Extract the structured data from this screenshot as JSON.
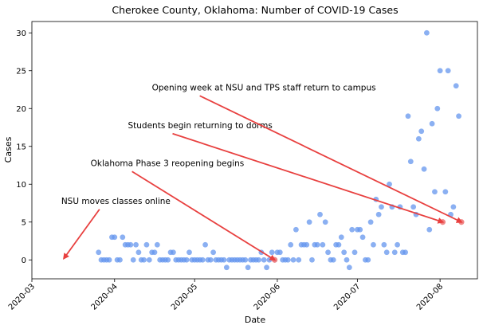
{
  "chart_data": {
    "type": "scatter",
    "title": "Cherokee County, Oklahoma: Number of COVID-19 Cases",
    "xlabel": "Date",
    "ylabel": "Cases",
    "xlim": [
      "2020-03-01",
      "2020-08-15"
    ],
    "ylim": [
      -2.5,
      31.5
    ],
    "x_ticks": [
      "2020-03",
      "2020-04",
      "2020-05",
      "2020-06",
      "2020-07",
      "2020-08"
    ],
    "y_ticks": [
      0,
      5,
      10,
      15,
      20,
      25,
      30
    ],
    "grid": false,
    "point_color": "#6495ED",
    "highlight_color": "#F08080",
    "arrow_color": "#E8403F",
    "series": [
      {
        "points": [
          [
            "2020-03-26",
            1
          ],
          [
            "2020-03-27",
            0
          ],
          [
            "2020-03-28",
            0
          ],
          [
            "2020-03-29",
            0
          ],
          [
            "2020-03-30",
            0
          ],
          [
            "2020-03-31",
            3
          ],
          [
            "2020-04-01",
            3
          ],
          [
            "2020-04-02",
            0
          ],
          [
            "2020-04-03",
            0
          ],
          [
            "2020-04-04",
            3
          ],
          [
            "2020-04-05",
            2
          ],
          [
            "2020-04-06",
            2
          ],
          [
            "2020-04-07",
            2
          ],
          [
            "2020-04-08",
            0
          ],
          [
            "2020-04-09",
            2
          ],
          [
            "2020-04-10",
            1
          ],
          [
            "2020-04-11",
            0
          ],
          [
            "2020-04-12",
            0
          ],
          [
            "2020-04-13",
            2
          ],
          [
            "2020-04-14",
            0
          ],
          [
            "2020-04-15",
            1
          ],
          [
            "2020-04-16",
            1
          ],
          [
            "2020-04-17",
            2
          ],
          [
            "2020-04-18",
            0
          ],
          [
            "2020-04-19",
            0
          ],
          [
            "2020-04-20",
            0
          ],
          [
            "2020-04-21",
            0
          ],
          [
            "2020-04-22",
            1
          ],
          [
            "2020-04-23",
            1
          ],
          [
            "2020-04-24",
            0
          ],
          [
            "2020-04-25",
            0
          ],
          [
            "2020-04-26",
            0
          ],
          [
            "2020-04-27",
            0
          ],
          [
            "2020-04-28",
            0
          ],
          [
            "2020-04-29",
            1
          ],
          [
            "2020-04-30",
            0
          ],
          [
            "2020-05-01",
            0
          ],
          [
            "2020-05-02",
            0
          ],
          [
            "2020-05-03",
            0
          ],
          [
            "2020-05-04",
            0
          ],
          [
            "2020-05-05",
            2
          ],
          [
            "2020-05-06",
            0
          ],
          [
            "2020-05-07",
            0
          ],
          [
            "2020-05-08",
            1
          ],
          [
            "2020-05-09",
            0
          ],
          [
            "2020-05-10",
            0
          ],
          [
            "2020-05-11",
            0
          ],
          [
            "2020-05-12",
            0
          ],
          [
            "2020-05-13",
            -1
          ],
          [
            "2020-05-14",
            0
          ],
          [
            "2020-05-15",
            0
          ],
          [
            "2020-05-16",
            0
          ],
          [
            "2020-05-17",
            0
          ],
          [
            "2020-05-18",
            0
          ],
          [
            "2020-05-19",
            0
          ],
          [
            "2020-05-20",
            0
          ],
          [
            "2020-05-21",
            -1
          ],
          [
            "2020-05-22",
            0
          ],
          [
            "2020-05-23",
            0
          ],
          [
            "2020-05-24",
            0
          ],
          [
            "2020-05-25",
            0
          ],
          [
            "2020-05-26",
            1
          ],
          [
            "2020-05-27",
            0
          ],
          [
            "2020-05-28",
            -1
          ],
          [
            "2020-05-29",
            0
          ],
          [
            "2020-05-30",
            1
          ],
          [
            "2020-05-31",
            0
          ],
          [
            "2020-06-01",
            1
          ],
          [
            "2020-06-02",
            1
          ],
          [
            "2020-06-03",
            0
          ],
          [
            "2020-06-04",
            0
          ],
          [
            "2020-06-05",
            0
          ],
          [
            "2020-06-06",
            2
          ],
          [
            "2020-06-07",
            0
          ],
          [
            "2020-06-08",
            4
          ],
          [
            "2020-06-09",
            0
          ],
          [
            "2020-06-10",
            2
          ],
          [
            "2020-06-11",
            2
          ],
          [
            "2020-06-12",
            2
          ],
          [
            "2020-06-13",
            5
          ],
          [
            "2020-06-14",
            0
          ],
          [
            "2020-06-15",
            2
          ],
          [
            "2020-06-16",
            2
          ],
          [
            "2020-06-17",
            6
          ],
          [
            "2020-06-18",
            2
          ],
          [
            "2020-06-19",
            5
          ],
          [
            "2020-06-20",
            1
          ],
          [
            "2020-06-21",
            0
          ],
          [
            "2020-06-22",
            0
          ],
          [
            "2020-06-23",
            2
          ],
          [
            "2020-06-24",
            2
          ],
          [
            "2020-06-25",
            3
          ],
          [
            "2020-06-26",
            1
          ],
          [
            "2020-06-27",
            0
          ],
          [
            "2020-06-28",
            -1
          ],
          [
            "2020-06-29",
            4
          ],
          [
            "2020-06-30",
            1
          ],
          [
            "2020-07-01",
            4
          ],
          [
            "2020-07-02",
            4
          ],
          [
            "2020-07-03",
            3
          ],
          [
            "2020-07-04",
            0
          ],
          [
            "2020-07-05",
            0
          ],
          [
            "2020-07-06",
            5
          ],
          [
            "2020-07-07",
            2
          ],
          [
            "2020-07-08",
            8
          ],
          [
            "2020-07-09",
            6
          ],
          [
            "2020-07-10",
            7
          ],
          [
            "2020-07-11",
            2
          ],
          [
            "2020-07-12",
            1
          ],
          [
            "2020-07-13",
            10
          ],
          [
            "2020-07-14",
            7
          ],
          [
            "2020-07-15",
            1
          ],
          [
            "2020-07-16",
            2
          ],
          [
            "2020-07-17",
            7
          ],
          [
            "2020-07-18",
            1
          ],
          [
            "2020-07-19",
            1
          ],
          [
            "2020-07-20",
            19
          ],
          [
            "2020-07-21",
            13
          ],
          [
            "2020-07-22",
            7
          ],
          [
            "2020-07-23",
            6
          ],
          [
            "2020-07-24",
            16
          ],
          [
            "2020-07-25",
            17
          ],
          [
            "2020-07-26",
            12
          ],
          [
            "2020-07-27",
            30
          ],
          [
            "2020-07-28",
            4
          ],
          [
            "2020-07-29",
            18
          ],
          [
            "2020-07-30",
            9
          ],
          [
            "2020-07-31",
            20
          ],
          [
            "2020-08-01",
            25
          ],
          [
            "2020-08-03",
            9
          ],
          [
            "2020-08-04",
            25
          ],
          [
            "2020-08-05",
            6
          ],
          [
            "2020-08-06",
            7
          ],
          [
            "2020-08-07",
            23
          ],
          [
            "2020-08-08",
            19
          ]
        ],
        "highlight": [
          [
            "2020-05-31",
            0
          ],
          [
            "2020-08-02",
            5
          ],
          [
            "2020-08-09",
            5
          ]
        ]
      }
    ],
    "annotations": [
      {
        "text": "NSU moves classes online",
        "text_at": [
          "2020-03-12",
          7
        ],
        "arrow_to": [
          "2020-03-13",
          0.2
        ]
      },
      {
        "text": "Oklahoma Phase 3 reopening begins",
        "text_at": [
          "2020-03-23",
          12
        ],
        "arrow_to": [
          "2020-05-31",
          0
        ]
      },
      {
        "text": "Students begin returning to dorms",
        "text_at": [
          "2020-04-06",
          17
        ],
        "arrow_to": [
          "2020-08-02",
          5
        ]
      },
      {
        "text": "Opening week at NSU and TPS staff return to campus",
        "text_at": [
          "2020-04-15",
          22
        ],
        "arrow_to": [
          "2020-08-09",
          5
        ]
      }
    ]
  }
}
